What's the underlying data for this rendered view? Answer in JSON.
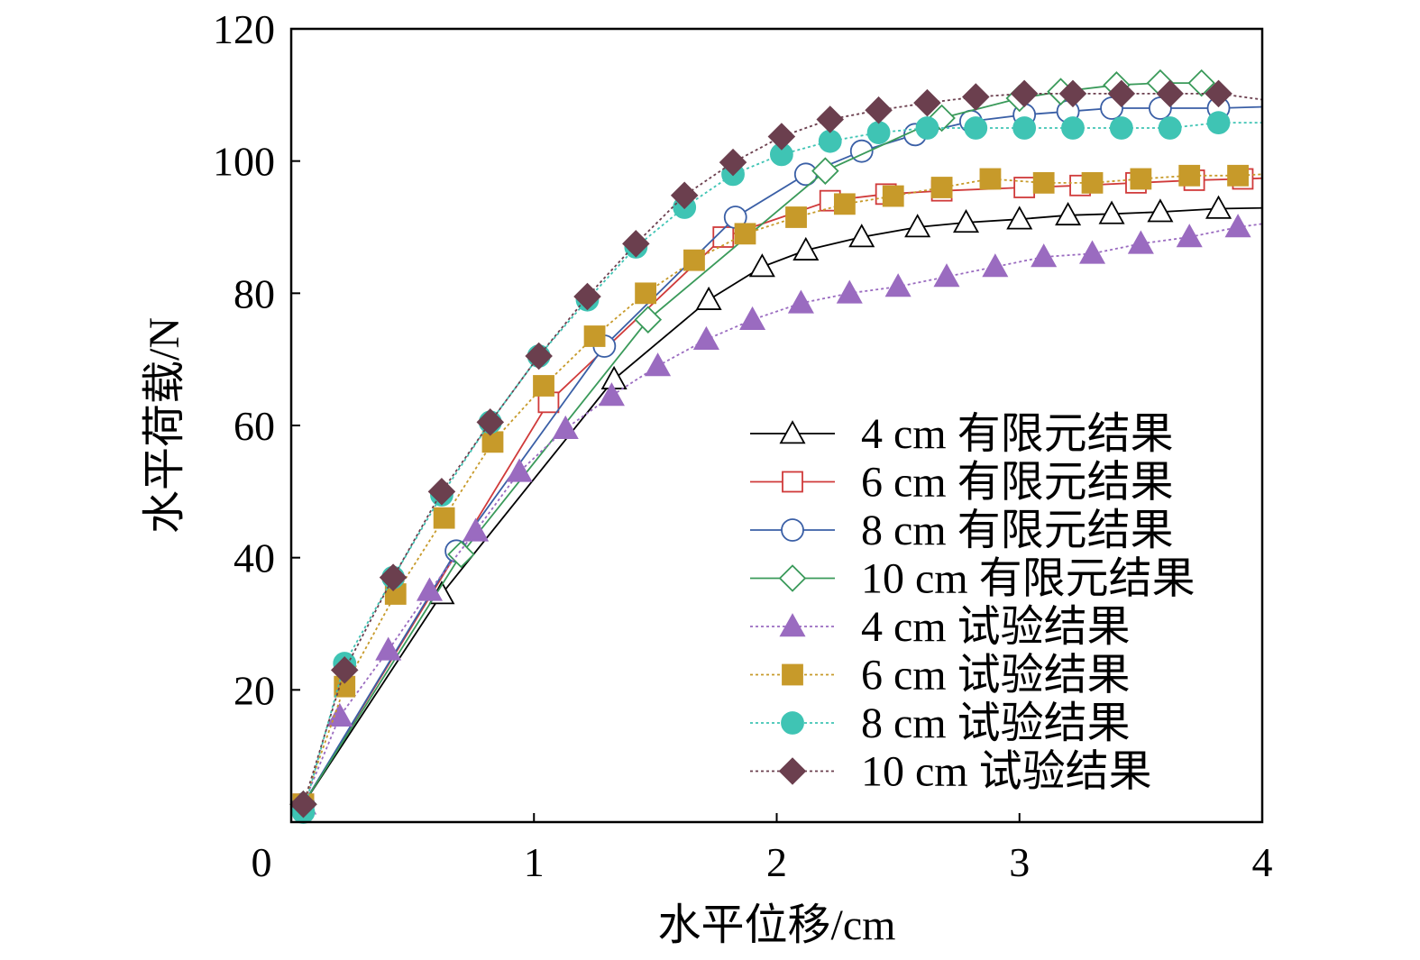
{
  "chart_data": {
    "type": "line",
    "xlabel": "水平位移/cm",
    "ylabel": "水平荷载/N",
    "xlim": [
      0,
      4
    ],
    "ylim": [
      0,
      120
    ],
    "xticks": [
      "0",
      "1",
      "2",
      "3",
      "4"
    ],
    "yticks": [
      "20",
      "40",
      "60",
      "80",
      "100",
      "120"
    ],
    "grid": false,
    "legend_position": "center-right",
    "series": [
      {
        "name": "4 cm 有限元结果",
        "marker": "triangle-open",
        "color": "#000000",
        "line": "solid",
        "points": [
          [
            0.05,
            2.7
          ],
          [
            0.62,
            34.5
          ],
          [
            1.33,
            67
          ],
          [
            1.72,
            79
          ],
          [
            1.94,
            84
          ],
          [
            2.12,
            86.5
          ],
          [
            2.35,
            88.5
          ],
          [
            2.58,
            90
          ],
          [
            2.78,
            90.7
          ],
          [
            3.0,
            91.2
          ],
          [
            3.2,
            91.8
          ],
          [
            3.38,
            92
          ],
          [
            3.58,
            92.3
          ],
          [
            3.82,
            92.8
          ],
          [
            4.0,
            92.9
          ]
        ]
      },
      {
        "name": "6 cm 有限元结果",
        "marker": "square-open",
        "color": "#d03a3a",
        "line": "solid",
        "points": [
          [
            0.05,
            2.7
          ],
          [
            1.06,
            63.5
          ],
          [
            1.78,
            88.5
          ],
          [
            2.22,
            94
          ],
          [
            2.45,
            95
          ],
          [
            2.68,
            95.5
          ],
          [
            3.02,
            96
          ],
          [
            3.25,
            96.3
          ],
          [
            3.48,
            96.7
          ],
          [
            3.72,
            97.1
          ],
          [
            3.92,
            97.3
          ],
          [
            4.0,
            97.4
          ]
        ]
      },
      {
        "name": "8 cm 有限元结果",
        "marker": "circle-open",
        "color": "#3a5fa6",
        "line": "solid",
        "points": [
          [
            0.05,
            2.7
          ],
          [
            0.68,
            41
          ],
          [
            1.29,
            72
          ],
          [
            1.83,
            91.5
          ],
          [
            2.12,
            98
          ],
          [
            2.35,
            101.5
          ],
          [
            2.57,
            104
          ],
          [
            2.8,
            106
          ],
          [
            3.02,
            107
          ],
          [
            3.2,
            107.5
          ],
          [
            3.38,
            108
          ],
          [
            3.58,
            108
          ],
          [
            3.82,
            108
          ],
          [
            4.0,
            108.2
          ]
        ]
      },
      {
        "name": "10 cm 有限元结果",
        "marker": "diamond-open",
        "color": "#3a9a5a",
        "line": "solid",
        "points": [
          [
            0.05,
            2.7
          ],
          [
            0.7,
            40.5
          ],
          [
            1.47,
            76
          ],
          [
            2.2,
            98.5
          ],
          [
            2.68,
            106.5
          ],
          [
            3.0,
            109.5
          ],
          [
            3.17,
            110.5
          ],
          [
            3.4,
            111.5
          ],
          [
            3.58,
            111.8
          ],
          [
            3.75,
            111.8
          ]
        ]
      },
      {
        "name": "4 cm 试验结果",
        "marker": "triangle-filled",
        "color": "#9a6bc0",
        "line": "dotted",
        "points": [
          [
            0.05,
            2.7
          ],
          [
            0.2,
            16
          ],
          [
            0.4,
            26
          ],
          [
            0.57,
            35
          ],
          [
            0.76,
            44
          ],
          [
            0.94,
            53
          ],
          [
            1.13,
            59.5
          ],
          [
            1.32,
            64.5
          ],
          [
            1.51,
            69
          ],
          [
            1.71,
            73
          ],
          [
            1.9,
            76
          ],
          [
            2.1,
            78.5
          ],
          [
            2.3,
            80
          ],
          [
            2.5,
            81
          ],
          [
            2.7,
            82.5
          ],
          [
            2.9,
            84
          ],
          [
            3.1,
            85.5
          ],
          [
            3.3,
            86
          ],
          [
            3.5,
            87.5
          ],
          [
            3.7,
            88.5
          ],
          [
            3.9,
            90
          ],
          [
            4.0,
            90.5
          ]
        ]
      },
      {
        "name": "6 cm 试验结果",
        "marker": "square-filled",
        "color": "#c79a2a",
        "line": "dotted",
        "points": [
          [
            0.05,
            2.7
          ],
          [
            0.22,
            20.5
          ],
          [
            0.43,
            34.5
          ],
          [
            0.63,
            46
          ],
          [
            0.83,
            57.5
          ],
          [
            1.04,
            66
          ],
          [
            1.25,
            73.5
          ],
          [
            1.46,
            80
          ],
          [
            1.66,
            85
          ],
          [
            1.87,
            89
          ],
          [
            2.08,
            91.5
          ],
          [
            2.28,
            93.5
          ],
          [
            2.48,
            94.7
          ],
          [
            2.68,
            96
          ],
          [
            2.88,
            97.3
          ],
          [
            3.1,
            96.7
          ],
          [
            3.3,
            96.7
          ],
          [
            3.5,
            97.3
          ],
          [
            3.7,
            97.8
          ],
          [
            3.9,
            97.8
          ],
          [
            4.0,
            98
          ]
        ]
      },
      {
        "name": "8 cm 试验结果",
        "marker": "circle-filled",
        "color": "#3fc4b4",
        "line": "dotted",
        "points": [
          [
            0.05,
            1.5
          ],
          [
            0.22,
            24
          ],
          [
            0.42,
            37
          ],
          [
            0.62,
            49.5
          ],
          [
            0.82,
            60.5
          ],
          [
            1.02,
            70.5
          ],
          [
            1.22,
            79
          ],
          [
            1.42,
            87
          ],
          [
            1.62,
            93
          ],
          [
            1.82,
            98
          ],
          [
            2.02,
            101
          ],
          [
            2.22,
            103
          ],
          [
            2.42,
            104.3
          ],
          [
            2.62,
            105
          ],
          [
            2.82,
            105
          ],
          [
            3.02,
            105
          ],
          [
            3.22,
            105
          ],
          [
            3.42,
            105
          ],
          [
            3.62,
            105
          ],
          [
            3.82,
            105.8
          ],
          [
            4.0,
            105.8
          ]
        ]
      },
      {
        "name": "10 cm 试验结果",
        "marker": "diamond-filled",
        "color": "#6b3f4e",
        "line": "dotted",
        "points": [
          [
            0.05,
            2.7
          ],
          [
            0.22,
            23
          ],
          [
            0.42,
            37
          ],
          [
            0.62,
            50
          ],
          [
            0.82,
            60.5
          ],
          [
            1.02,
            70.5
          ],
          [
            1.22,
            79.5
          ],
          [
            1.42,
            87.5
          ],
          [
            1.62,
            94.8
          ],
          [
            1.82,
            99.8
          ],
          [
            2.02,
            103.7
          ],
          [
            2.22,
            106.3
          ],
          [
            2.42,
            107.7
          ],
          [
            2.62,
            108.8
          ],
          [
            2.82,
            109.7
          ],
          [
            3.02,
            110.2
          ],
          [
            3.22,
            110.2
          ],
          [
            3.42,
            110.2
          ],
          [
            3.62,
            110.2
          ],
          [
            3.82,
            110.2
          ],
          [
            4.0,
            109.3
          ]
        ]
      }
    ]
  }
}
